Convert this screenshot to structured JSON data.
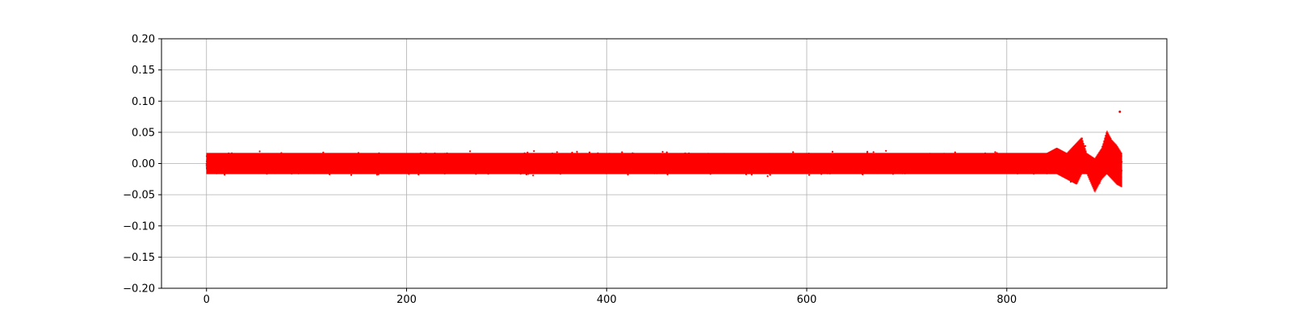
{
  "chart_data": {
    "type": "scatter",
    "title": "",
    "xlabel": "",
    "ylabel": "",
    "xlim": [
      -45,
      960
    ],
    "ylim": [
      -0.2,
      0.2
    ],
    "xticks": [
      0,
      200,
      400,
      600,
      800
    ],
    "yticks": [
      -0.2,
      -0.15,
      -0.1,
      -0.05,
      0.0,
      0.05,
      0.1,
      0.15,
      0.2
    ],
    "ytick_labels": [
      "−0.20",
      "−0.15",
      "−0.10",
      "−0.05",
      "0.00",
      "0.05",
      "0.10",
      "0.15",
      "0.20"
    ],
    "grid": true,
    "series": [
      {
        "color": "#ff0000",
        "x_range": [
          0,
          915
        ],
        "baseline_amplitude": 0.02,
        "burst_envelope": [
          {
            "x": 0,
            "upper": 0.02,
            "lower": -0.02
          },
          {
            "x": 840,
            "upper": 0.02,
            "lower": -0.02
          },
          {
            "x": 850,
            "upper": 0.03,
            "lower": -0.02
          },
          {
            "x": 860,
            "upper": 0.02,
            "lower": -0.03
          },
          {
            "x": 870,
            "upper": 0.04,
            "lower": -0.04
          },
          {
            "x": 875,
            "upper": 0.05,
            "lower": -0.02
          },
          {
            "x": 880,
            "upper": 0.02,
            "lower": -0.02
          },
          {
            "x": 888,
            "upper": 0.01,
            "lower": -0.055
          },
          {
            "x": 895,
            "upper": 0.03,
            "lower": -0.03
          },
          {
            "x": 900,
            "upper": 0.063,
            "lower": -0.02
          },
          {
            "x": 905,
            "upper": 0.045,
            "lower": -0.03
          },
          {
            "x": 910,
            "upper": 0.035,
            "lower": -0.04
          },
          {
            "x": 915,
            "upper": 0.02,
            "lower": -0.045
          }
        ],
        "outliers": [
          {
            "x": 913,
            "y": 0.083
          }
        ]
      }
    ]
  }
}
